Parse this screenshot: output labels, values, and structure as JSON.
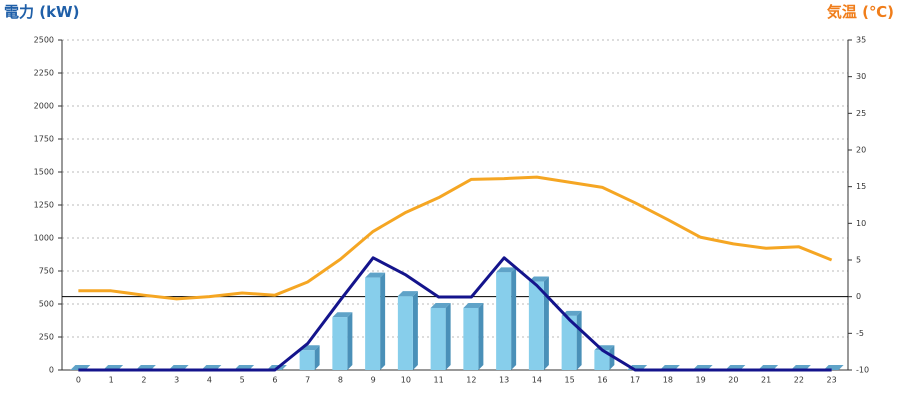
{
  "chart_data": {
    "type": "bar",
    "y_title": "電力 (kW)",
    "y2_title": "気温 (℃)",
    "categories": [
      "0",
      "1",
      "2",
      "3",
      "4",
      "5",
      "6",
      "7",
      "8",
      "9",
      "10",
      "11",
      "12",
      "13",
      "14",
      "15",
      "16",
      "17",
      "18",
      "19",
      "20",
      "21",
      "22",
      "23"
    ],
    "series": [
      {
        "type": "bar",
        "color": "#87ceeb",
        "values": [
          0,
          0,
          0,
          0,
          0,
          0,
          0,
          150,
          400,
          700,
          560,
          470,
          470,
          740,
          670,
          410,
          150,
          0,
          0,
          0,
          0,
          0,
          0,
          0
        ]
      },
      {
        "type": "line",
        "color": "#14148c",
        "values": [
          0,
          0,
          0,
          0,
          0,
          0,
          0,
          200,
          530,
          850,
          720,
          553,
          553,
          850,
          640,
          380,
          150,
          0,
          0,
          0,
          0,
          0,
          0,
          0
        ]
      },
      {
        "type": "line",
        "axis": "y2",
        "color": "#f5a623",
        "values": [
          0.8,
          0.8,
          0.2,
          -0.3,
          0,
          0.5,
          0.2,
          2,
          5.1,
          8.9,
          11.5,
          13.5,
          16,
          16.1,
          16.3,
          15.6,
          14.9,
          12.8,
          10.5,
          8.1,
          7.2,
          6.6,
          6.8,
          5
        ]
      }
    ],
    "ylim": [
      0,
      2500
    ],
    "yticks": [
      0,
      250,
      500,
      750,
      1000,
      1250,
      1500,
      1750,
      2000,
      2250,
      2500
    ],
    "y2lim": [
      -10,
      35
    ],
    "y2ticks": [
      -10,
      -5,
      0,
      5,
      10,
      15,
      20,
      25,
      30,
      35
    ],
    "reference_line": {
      "axis": "y2",
      "value": 0
    },
    "grid": true,
    "y_title_color": "#1f5fa8",
    "y2_title_color": "#f07d1a"
  }
}
